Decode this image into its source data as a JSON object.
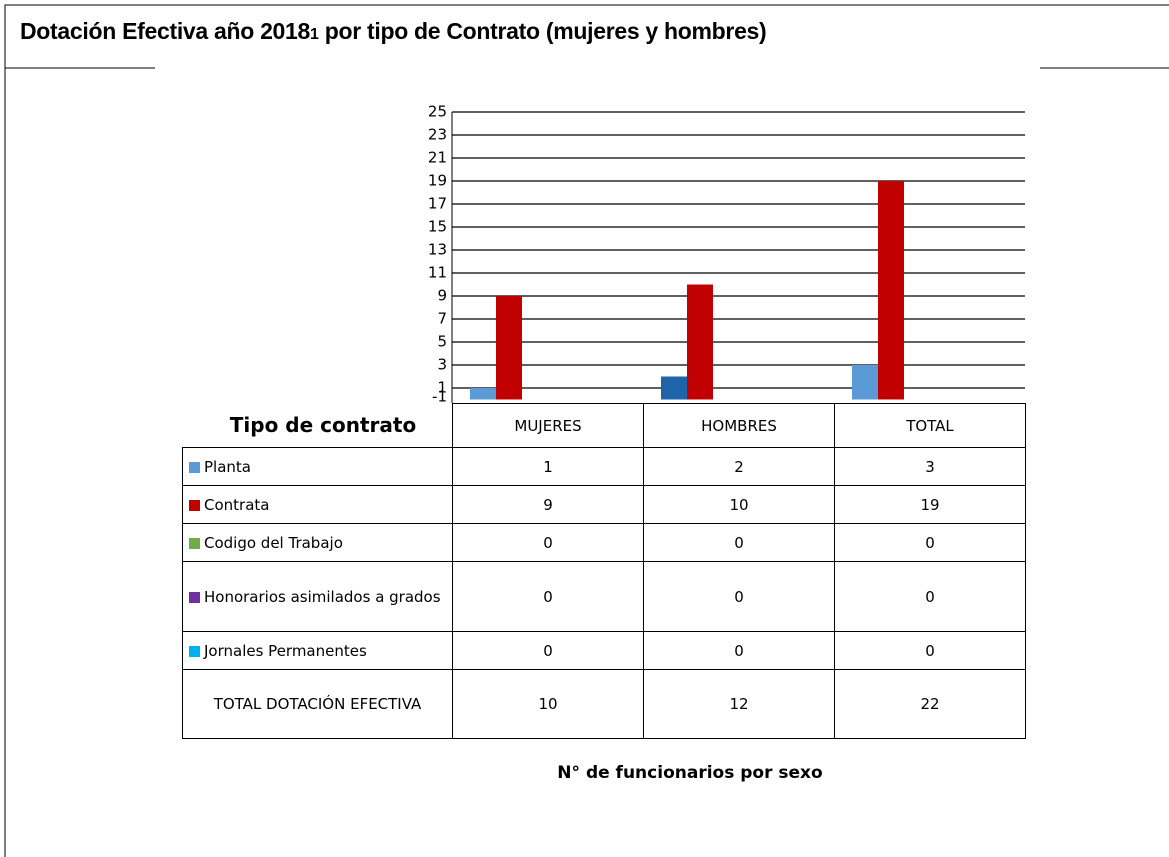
{
  "chart_data": {
    "type": "bar",
    "title": [
      "Dotación Efectiva año 2018",
      "1",
      "por tipo de Contrato (mujeres y hombres)"
    ],
    "row_axis_label": "Tipo de contrato",
    "x_label": "N° de funcionarios por sexo",
    "categories": [
      "MUJERES",
      "HOMBRES",
      "TOTAL"
    ],
    "series": [
      {
        "name": "Planta",
        "color": "#5b9bd5",
        "colors": [
          "#5b9bd5",
          "#1f64a8",
          "#5b9bd5"
        ],
        "values": [
          1,
          2,
          3
        ]
      },
      {
        "name": "Contrata",
        "color": "#c00000",
        "values": [
          9,
          10,
          19
        ]
      },
      {
        "name": "Codigo del Trabajo",
        "color": "#70ad47",
        "values": [
          0,
          0,
          0
        ]
      },
      {
        "name": "Honorarios asimilados a grados",
        "color": "#7030a0",
        "values": [
          0,
          0,
          0
        ]
      },
      {
        "name": "Jornales Permanentes",
        "color": "#00b0f0",
        "values": [
          0,
          0,
          0
        ]
      }
    ],
    "total_row": {
      "name": "TOTAL DOTACIÓN EFECTIVA",
      "values": [
        10,
        12,
        22
      ]
    },
    "ylim": [
      -1,
      25
    ],
    "yticks": [
      -1,
      1,
      3,
      5,
      7,
      9,
      11,
      13,
      15,
      17,
      19,
      21,
      23,
      25
    ],
    "grid": true
  }
}
